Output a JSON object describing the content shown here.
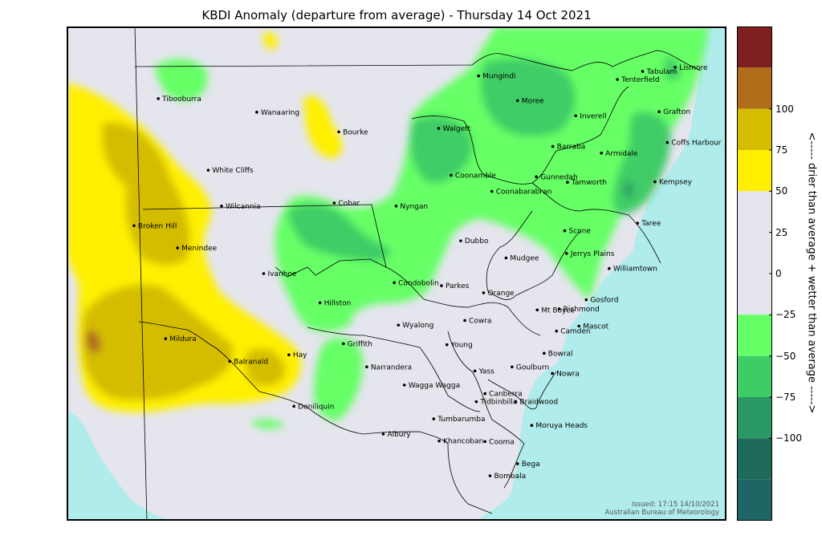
{
  "title": "KBDI Anomaly (departure from average) - Thursday 14 Oct 2021",
  "colorbar": {
    "bands": [
      {
        "min": 125,
        "max": 150,
        "color": "#7f1f1f"
      },
      {
        "min": 100,
        "max": 125,
        "color": "#b06e1a"
      },
      {
        "min": 75,
        "max": 100,
        "color": "#d4bd00"
      },
      {
        "min": 50,
        "max": 75,
        "color": "#fff000"
      },
      {
        "min": -25,
        "max": 50,
        "color": "#e5e5ee"
      },
      {
        "min": -50,
        "max": -25,
        "color": "#66ff66"
      },
      {
        "min": -75,
        "max": -50,
        "color": "#3fcc66"
      },
      {
        "min": -100,
        "max": -75,
        "color": "#2a9966"
      },
      {
        "min": -125,
        "max": -100,
        "color": "#1e6b5a"
      },
      {
        "min": -150,
        "max": -125,
        "color": "#1e6666"
      }
    ],
    "ticks": [
      "100",
      "75",
      "50",
      "25",
      "0",
      "−25",
      "−50",
      "−75",
      "−100"
    ],
    "label": "<----- drier than average     +     wetter than average ----->"
  },
  "colors": {
    "sea": "#b0ecec",
    "land": "#e5e5ee",
    "border": "#000000"
  },
  "towns": [
    {
      "name": "Tibooburra",
      "lon": 142.0,
      "lat": -29.43
    },
    {
      "name": "Wanaaring",
      "lon": 144.15,
      "lat": -29.7
    },
    {
      "name": "Bourke",
      "lon": 145.94,
      "lat": -30.09
    },
    {
      "name": "White Cliffs",
      "lon": 143.09,
      "lat": -30.85
    },
    {
      "name": "Wilcannia",
      "lon": 143.38,
      "lat": -31.56
    },
    {
      "name": "Cobar",
      "lon": 145.84,
      "lat": -31.5
    },
    {
      "name": "Broken Hill",
      "lon": 141.47,
      "lat": -31.95
    },
    {
      "name": "Menindee",
      "lon": 142.42,
      "lat": -32.39
    },
    {
      "name": "Ivanhoe",
      "lon": 144.3,
      "lat": -32.9
    },
    {
      "name": "Condobolin",
      "lon": 147.15,
      "lat": -33.08
    },
    {
      "name": "Hillston",
      "lon": 145.53,
      "lat": -33.48
    },
    {
      "name": "Mildura",
      "lon": 142.16,
      "lat": -34.19
    },
    {
      "name": "Balranald",
      "lon": 143.56,
      "lat": -34.64
    },
    {
      "name": "Hay",
      "lon": 144.85,
      "lat": -34.51
    },
    {
      "name": "Griffith",
      "lon": 146.04,
      "lat": -34.29
    },
    {
      "name": "Narrandera",
      "lon": 146.55,
      "lat": -34.75
    },
    {
      "name": "Deniliquin",
      "lon": 144.96,
      "lat": -35.53
    },
    {
      "name": "Albury",
      "lon": 146.91,
      "lat": -36.08
    },
    {
      "name": "Khancoban",
      "lon": 148.13,
      "lat": -36.22
    },
    {
      "name": "Mungindi",
      "lon": 148.99,
      "lat": -28.98
    },
    {
      "name": "Moree",
      "lon": 149.84,
      "lat": -29.47
    },
    {
      "name": "Walgett",
      "lon": 148.12,
      "lat": -30.02
    },
    {
      "name": "Inverell",
      "lon": 151.11,
      "lat": -29.77
    },
    {
      "name": "Tabulam",
      "lon": 152.57,
      "lat": -28.89
    },
    {
      "name": "Lismore",
      "lon": 153.28,
      "lat": -28.81
    },
    {
      "name": "Tenterfield",
      "lon": 152.02,
      "lat": -29.05
    },
    {
      "name": "Grafton",
      "lon": 152.93,
      "lat": -29.69
    },
    {
      "name": "Barraba",
      "lon": 150.61,
      "lat": -30.38
    },
    {
      "name": "Armidale",
      "lon": 151.67,
      "lat": -30.51
    },
    {
      "name": "Coffs Harbour",
      "lon": 153.11,
      "lat": -30.3
    },
    {
      "name": "Coonamble",
      "lon": 148.39,
      "lat": -30.95
    },
    {
      "name": "Gunnedah",
      "lon": 150.25,
      "lat": -30.98
    },
    {
      "name": "Tamworth",
      "lon": 150.93,
      "lat": -31.09
    },
    {
      "name": "Kempsey",
      "lon": 152.84,
      "lat": -31.08
    },
    {
      "name": "Nyngan",
      "lon": 147.19,
      "lat": -31.56
    },
    {
      "name": "Coonabarabran",
      "lon": 149.28,
      "lat": -31.27
    },
    {
      "name": "Taree",
      "lon": 152.46,
      "lat": -31.9
    },
    {
      "name": "Dubbo",
      "lon": 148.6,
      "lat": -32.25
    },
    {
      "name": "Scone",
      "lon": 150.87,
      "lat": -32.05
    },
    {
      "name": "Mudgee",
      "lon": 149.59,
      "lat": -32.59
    },
    {
      "name": "Jerrys Plains",
      "lon": 150.91,
      "lat": -32.5
    },
    {
      "name": "Williamtown",
      "lon": 151.84,
      "lat": -32.8
    },
    {
      "name": "Parkes",
      "lon": 148.18,
      "lat": -33.14
    },
    {
      "name": "Orange",
      "lon": 149.1,
      "lat": -33.28
    },
    {
      "name": "Gosford",
      "lon": 151.34,
      "lat": -33.42
    },
    {
      "name": "Mt Boyce",
      "lon": 150.27,
      "lat": -33.62
    },
    {
      "name": "Richmond",
      "lon": 150.75,
      "lat": -33.6
    },
    {
      "name": "Cowra",
      "lon": 148.69,
      "lat": -33.83
    },
    {
      "name": "Wyalong",
      "lon": 147.24,
      "lat": -33.92
    },
    {
      "name": "Camden",
      "lon": 150.69,
      "lat": -34.04
    },
    {
      "name": "Mascot",
      "lon": 151.18,
      "lat": -33.94
    },
    {
      "name": "Young",
      "lon": 148.3,
      "lat": -34.31
    },
    {
      "name": "Bowral",
      "lon": 150.42,
      "lat": -34.48
    },
    {
      "name": "Yass",
      "lon": 148.91,
      "lat": -34.83
    },
    {
      "name": "Goulburn",
      "lon": 149.72,
      "lat": -34.75
    },
    {
      "name": "Nowra",
      "lon": 150.6,
      "lat": -34.88
    },
    {
      "name": "Wagga Wagga",
      "lon": 147.37,
      "lat": -35.11
    },
    {
      "name": "Canberra",
      "lon": 149.13,
      "lat": -35.28
    },
    {
      "name": "Braidwood",
      "lon": 149.8,
      "lat": -35.44
    },
    {
      "name": "Tidbinbilla",
      "lon": 148.94,
      "lat": -35.44
    },
    {
      "name": "Tumbarumba",
      "lon": 148.01,
      "lat": -35.78
    },
    {
      "name": "Moruya Heads",
      "lon": 150.15,
      "lat": -35.91
    },
    {
      "name": "Cooma",
      "lon": 149.13,
      "lat": -36.23
    },
    {
      "name": "Bega",
      "lon": 149.84,
      "lat": -36.67
    },
    {
      "name": "Bombala",
      "lon": 149.24,
      "lat": -36.91
    }
  ],
  "issued": {
    "line1": "Issued: 17:15 14/10/2021",
    "line2": "Australian Bureau of Meteorology"
  }
}
